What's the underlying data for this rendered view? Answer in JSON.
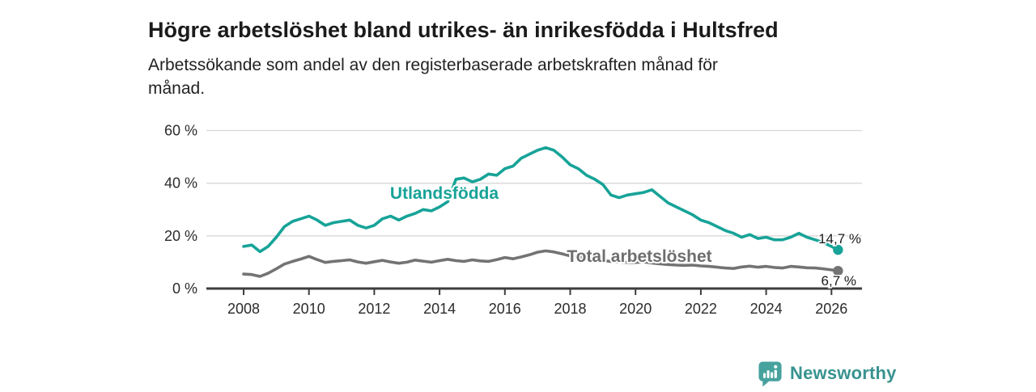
{
  "header": {
    "title": "Högre arbetslöshet bland utrikes- än inrikesfödda i Hultsfred",
    "subtitle_line1": "Arbetssökande som andel av den registerbaserade arbetskraften månad för",
    "subtitle_line2": "månad."
  },
  "colors": {
    "foreign_born_line": "#17a398",
    "total_line": "#737373",
    "total_label": "#6e6e6e",
    "grid": "#d8d8d8",
    "axis": "#3d3d3d",
    "text": "#2b2b2b",
    "brand_teal": "#46a29d"
  },
  "chart_data": {
    "type": "line",
    "title": "Högre arbetslöshet bland utrikes- än inrikesfödda i Hultsfred",
    "xlabel": "",
    "ylabel": "",
    "ylim": [
      0,
      62
    ],
    "xlim": [
      2006.85,
      2026.9
    ],
    "grid": "horizontal",
    "legend_position": "inline-labels",
    "yticks": [
      0,
      20,
      40,
      60
    ],
    "ytick_labels": [
      "0 %",
      "20 %",
      "40 %",
      "60 %"
    ],
    "xticks": [
      2008,
      2010,
      2012,
      2014,
      2016,
      2018,
      2020,
      2022,
      2024,
      2026
    ],
    "series": [
      {
        "name": "Utlandsfödda",
        "label": "Utlandsfödda",
        "end_label": "14,7 %",
        "end_value": 14.7,
        "color": "#17a398",
        "x": [
          2008.0,
          2008.25,
          2008.5,
          2008.75,
          2009.0,
          2009.25,
          2009.5,
          2009.75,
          2010.0,
          2010.25,
          2010.5,
          2010.75,
          2011.0,
          2011.25,
          2011.5,
          2011.75,
          2012.0,
          2012.25,
          2012.5,
          2012.75,
          2013.0,
          2013.25,
          2013.5,
          2013.75,
          2014.0,
          2014.25,
          2014.5,
          2014.75,
          2015.0,
          2015.25,
          2015.5,
          2015.75,
          2016.0,
          2016.25,
          2016.5,
          2016.75,
          2017.0,
          2017.25,
          2017.5,
          2017.75,
          2018.0,
          2018.25,
          2018.5,
          2018.75,
          2019.0,
          2019.25,
          2019.5,
          2019.75,
          2020.0,
          2020.25,
          2020.5,
          2020.75,
          2021.0,
          2021.25,
          2021.5,
          2021.75,
          2022.0,
          2022.25,
          2022.5,
          2022.75,
          2023.0,
          2023.25,
          2023.5,
          2023.75,
          2024.0,
          2024.25,
          2024.5,
          2024.75,
          2025.0,
          2025.25,
          2025.5,
          2025.75,
          2026.0,
          2026.2
        ],
        "values": [
          16,
          16.5,
          14,
          16,
          19.5,
          23.5,
          25.5,
          26.5,
          27.5,
          26,
          24,
          25,
          25.5,
          26,
          24,
          23,
          24,
          26.5,
          27.5,
          26,
          27.5,
          28.5,
          30,
          29.5,
          31,
          33,
          41.5,
          42,
          40.5,
          41.5,
          43.5,
          43,
          45.5,
          46.5,
          49.5,
          51,
          52.5,
          53.5,
          52.5,
          50,
          47,
          45.5,
          43,
          41.5,
          39.5,
          35.5,
          34.5,
          35.5,
          36,
          36.5,
          37.5,
          35,
          32.5,
          31,
          29.5,
          28,
          26,
          25,
          23.5,
          22,
          21,
          19.5,
          20.5,
          19,
          19.5,
          18.5,
          18.5,
          19.5,
          21,
          19.5,
          18.5,
          17.5,
          16,
          14.7
        ]
      },
      {
        "name": "Total arbetslöshet",
        "label": "Total arbetslöshet",
        "end_label": "6,7 %",
        "end_value": 6.7,
        "color": "#737373",
        "x": [
          2008.0,
          2008.25,
          2008.5,
          2008.75,
          2009.0,
          2009.25,
          2009.5,
          2009.75,
          2010.0,
          2010.25,
          2010.5,
          2010.75,
          2011.0,
          2011.25,
          2011.5,
          2011.75,
          2012.0,
          2012.25,
          2012.5,
          2012.75,
          2013.0,
          2013.25,
          2013.5,
          2013.75,
          2014.0,
          2014.25,
          2014.5,
          2014.75,
          2015.0,
          2015.25,
          2015.5,
          2015.75,
          2016.0,
          2016.25,
          2016.5,
          2016.75,
          2017.0,
          2017.25,
          2017.5,
          2017.75,
          2018.0,
          2018.25,
          2018.5,
          2018.75,
          2019.0,
          2019.25,
          2019.5,
          2019.75,
          2020.0,
          2020.25,
          2020.5,
          2020.75,
          2021.0,
          2021.25,
          2021.5,
          2021.75,
          2022.0,
          2022.25,
          2022.5,
          2022.75,
          2023.0,
          2023.25,
          2023.5,
          2023.75,
          2024.0,
          2024.25,
          2024.5,
          2024.75,
          2025.0,
          2025.25,
          2025.5,
          2025.75,
          2026.0,
          2026.2
        ],
        "values": [
          5.5,
          5.3,
          4.6,
          5.8,
          7.5,
          9.3,
          10.3,
          11.2,
          12.2,
          11,
          9.9,
          10.3,
          10.6,
          10.9,
          10.1,
          9.6,
          10.2,
          10.7,
          10.1,
          9.6,
          10,
          10.8,
          10.4,
          10,
          10.6,
          11.1,
          10.6,
          10.3,
          10.9,
          10.5,
          10.3,
          11,
          11.8,
          11.3,
          12,
          12.8,
          13.8,
          14.3,
          13.9,
          13.2,
          12.4,
          11.9,
          11.4,
          11,
          10.6,
          10.3,
          10.1,
          9.9,
          9.9,
          10.1,
          9.7,
          9.4,
          9.1,
          8.9,
          8.8,
          8.9,
          8.6,
          8.4,
          8.1,
          7.8,
          7.6,
          8.2,
          8.5,
          8.1,
          8.4,
          8,
          7.8,
          8.4,
          8.2,
          7.9,
          7.8,
          7.5,
          7.1,
          6.7
        ]
      }
    ]
  },
  "footer": {
    "brand": "Newsworthy"
  }
}
